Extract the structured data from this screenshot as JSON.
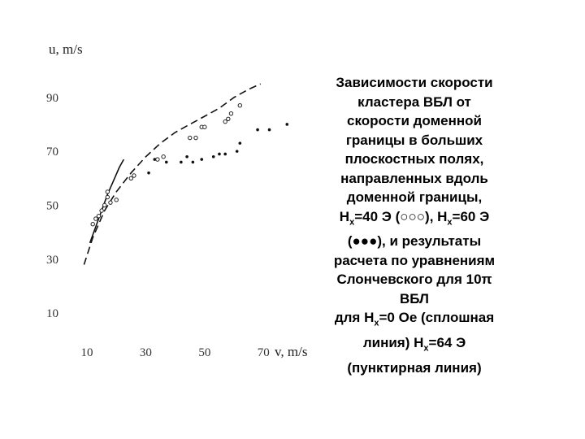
{
  "caption": {
    "l1": "Зависимости скорости",
    "l2": "кластера ВБЛ от",
    "l3": "скорости доменной",
    "l4": "границы в больших",
    "l5": "плоскостных полях,",
    "l6": "направленных вдоль",
    "l7": "доменной границы,",
    "l8_a": "H",
    "l8_sub1": "x",
    "l8_b": "=40 Э (○○○), H",
    "l8_sub2": "x",
    "l8_c": "=60 Э",
    "l9": "(●●●), и результаты",
    "l10": "расчета по уравнениям",
    "l11": "Слончевского для 10π",
    "l12": "ВБЛ",
    "l13_a": "для H",
    "l13_sub": "x",
    "l13_b": "=0 Oe (сплошная",
    "l14_a": "линия)  H",
    "l14_sub": "x",
    "l14_b": "=64 Э",
    "l15": "(пунктирная линия)"
  },
  "chart_data": {
    "type": "scatter",
    "xlabel": "v, m/s",
    "ylabel": "u, m/s",
    "xlim": [
      2,
      84
    ],
    "ylim": [
      -2,
      105
    ],
    "x_ticks": [
      {
        "value": 10,
        "label": "10"
      },
      {
        "value": 30,
        "label": "30"
      },
      {
        "value": 50,
        "label": "50"
      },
      {
        "value": 70,
        "label": "70"
      }
    ],
    "y_ticks": [
      {
        "value": 10,
        "label": "10"
      },
      {
        "value": 30,
        "label": "30"
      },
      {
        "value": 50,
        "label": "50"
      },
      {
        "value": 70,
        "label": "70"
      },
      {
        "value": 90,
        "label": "90"
      }
    ],
    "series": [
      {
        "marker": "open-circle",
        "points": [
          [
            12,
            43
          ],
          [
            13,
            45
          ],
          [
            14,
            46
          ],
          [
            15,
            48
          ],
          [
            16,
            50
          ],
          [
            17,
            53
          ],
          [
            17,
            55
          ],
          [
            18,
            51
          ],
          [
            20,
            52
          ],
          [
            25,
            60
          ],
          [
            26,
            61
          ],
          [
            34,
            67
          ],
          [
            36,
            68
          ],
          [
            45,
            75
          ],
          [
            47,
            75
          ],
          [
            49,
            79
          ],
          [
            50,
            79
          ],
          [
            57,
            81
          ],
          [
            58,
            82
          ],
          [
            59,
            84
          ],
          [
            62,
            87
          ]
        ]
      },
      {
        "marker": "filled-circle",
        "points": [
          [
            31,
            62
          ],
          [
            33,
            67
          ],
          [
            37,
            66
          ],
          [
            42,
            66
          ],
          [
            44,
            68
          ],
          [
            46,
            66
          ],
          [
            49,
            67
          ],
          [
            53,
            68
          ],
          [
            55,
            69
          ],
          [
            57,
            69
          ],
          [
            61,
            70
          ],
          [
            62,
            73
          ],
          [
            68,
            78
          ],
          [
            72,
            78
          ],
          [
            78,
            80
          ]
        ]
      },
      {
        "style": "solid",
        "points": [
          [
            11,
            36
          ],
          [
            13,
            42
          ],
          [
            15,
            48
          ],
          [
            17,
            54
          ],
          [
            19,
            59
          ],
          [
            21,
            64
          ],
          [
            22.5,
            67
          ]
        ]
      },
      {
        "style": "dashed",
        "points": [
          [
            9,
            28
          ],
          [
            12,
            38
          ],
          [
            16,
            48
          ],
          [
            20,
            55
          ],
          [
            25,
            62
          ],
          [
            30,
            68
          ],
          [
            35,
            73
          ],
          [
            40,
            77
          ],
          [
            45,
            80
          ],
          [
            50,
            83
          ],
          [
            55,
            86
          ],
          [
            60,
            90
          ],
          [
            65,
            93
          ],
          [
            69,
            95
          ]
        ]
      }
    ]
  }
}
